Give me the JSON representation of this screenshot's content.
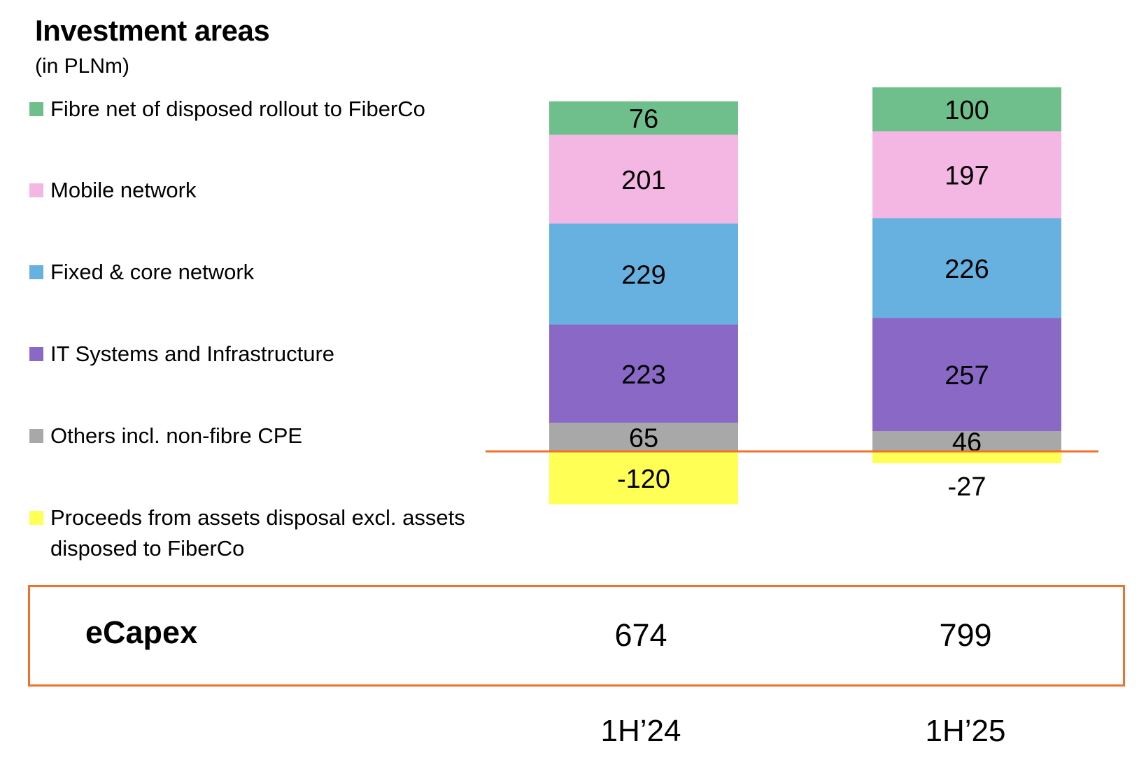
{
  "title": "Investment areas",
  "subtitle": "(in PLNm)",
  "colors": {
    "fibre": "#6fbf8c",
    "mobile": "#f4b6e2",
    "fixed": "#66b1e0",
    "it": "#8a68c6",
    "others": "#a8a8a8",
    "proceeds": "#ffff55",
    "baseline": "#f07029"
  },
  "ecapex": {
    "label": "eCapex",
    "values": [
      "674",
      "799"
    ]
  },
  "chart_data": {
    "type": "bar",
    "stacked": true,
    "categories": [
      "1H’24",
      "1H’25"
    ],
    "series": [
      {
        "name": "Proceeds from assets disposal excl. assets disposed to FiberCo",
        "key": "proceeds",
        "values": [
          -120,
          -27
        ]
      },
      {
        "name": "Others incl. non-fibre CPE",
        "key": "others",
        "values": [
          65,
          46
        ]
      },
      {
        "name": "IT Systems and Infrastructure",
        "key": "it",
        "values": [
          223,
          257
        ]
      },
      {
        "name": "Fixed & core network",
        "key": "fixed",
        "values": [
          229,
          226
        ]
      },
      {
        "name": "Mobile network",
        "key": "mobile",
        "values": [
          201,
          197
        ]
      },
      {
        "name": "Fibre net of disposed rollout to FiberCo",
        "key": "fibre",
        "values": [
          76,
          100
        ]
      }
    ],
    "legend": [
      "fibre",
      "mobile",
      "fixed",
      "it",
      "others",
      "proceeds"
    ],
    "grid": false,
    "legend_placement": "left"
  }
}
